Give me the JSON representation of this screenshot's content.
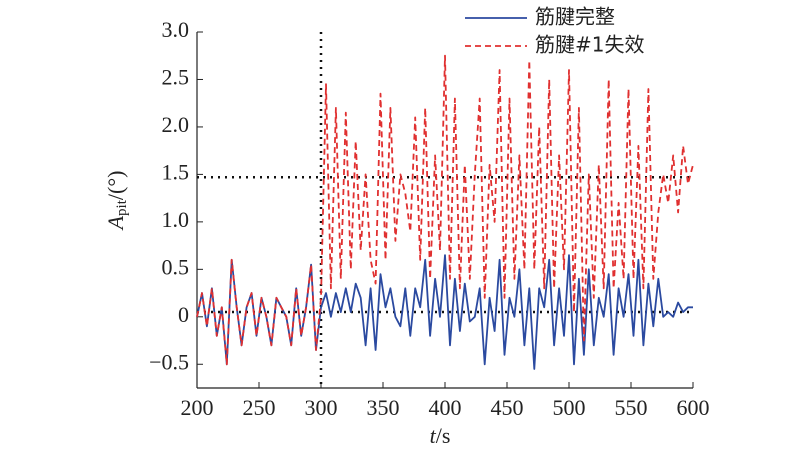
{
  "chart_data": {
    "type": "line",
    "x_label": {
      "symbol": "t",
      "unit": "/s"
    },
    "y_label": {
      "symbol": "A",
      "subscript": "pit",
      "unit": "/(°)"
    },
    "xlim": [
      200,
      600
    ],
    "xticks": [
      200,
      250,
      300,
      350,
      400,
      450,
      500,
      550,
      600
    ],
    "ylim": [
      -0.75,
      3.0
    ],
    "yticks": [
      {
        "value": -0.5,
        "label": "−0.5"
      },
      0,
      {
        "value": 0.5,
        "label": "0.5"
      },
      {
        "value": 1,
        "label": "1.0"
      },
      {
        "value": 1.5,
        "label": "1.5"
      },
      {
        "value": 2,
        "label": "2.0"
      },
      {
        "value": 2.5,
        "label": "2.5"
      },
      {
        "value": 3,
        "label": "3.0"
      }
    ],
    "reference_lines": {
      "x": [
        300
      ],
      "y": [
        1.47,
        0.05
      ]
    },
    "legend": "upper right",
    "x": [
      200,
      204,
      208,
      212,
      216,
      220,
      224,
      228,
      232,
      236,
      240,
      244,
      248,
      252,
      256,
      260,
      264,
      268,
      272,
      276,
      280,
      284,
      288,
      292,
      296,
      300,
      304,
      308,
      312,
      316,
      320,
      324,
      328,
      332,
      336,
      340,
      344,
      348,
      352,
      356,
      360,
      364,
      368,
      372,
      376,
      380,
      384,
      388,
      392,
      396,
      400,
      404,
      408,
      412,
      416,
      420,
      424,
      428,
      432,
      436,
      440,
      444,
      448,
      452,
      456,
      460,
      464,
      468,
      472,
      476,
      480,
      484,
      488,
      492,
      496,
      500,
      504,
      508,
      512,
      516,
      520,
      524,
      528,
      532,
      536,
      540,
      544,
      548,
      552,
      556,
      560,
      564,
      568,
      572,
      576,
      580,
      584,
      588,
      592,
      596,
      600
    ],
    "series": [
      {
        "name": "筋腱完整",
        "color": "#2b4aa0",
        "dash": false,
        "values": [
          0.0,
          0.25,
          -0.1,
          0.3,
          -0.2,
          0.1,
          -0.5,
          0.6,
          0.1,
          -0.3,
          0.1,
          0.25,
          -0.2,
          0.2,
          0.0,
          -0.3,
          0.2,
          0.1,
          0.0,
          -0.3,
          0.3,
          -0.2,
          0.1,
          0.55,
          -0.35,
          0.1,
          0.25,
          0.0,
          0.25,
          0.05,
          0.3,
          0.05,
          0.35,
          0.2,
          -0.3,
          0.3,
          -0.35,
          0.45,
          0.1,
          0.3,
          0.0,
          -0.1,
          0.3,
          -0.2,
          0.3,
          0.1,
          0.6,
          -0.2,
          0.4,
          0.0,
          0.65,
          -0.3,
          0.4,
          -0.15,
          0.35,
          -0.05,
          0.0,
          0.3,
          -0.5,
          0.2,
          -0.15,
          0.6,
          -0.4,
          0.2,
          0.0,
          0.5,
          -0.3,
          0.3,
          -0.55,
          0.3,
          0.1,
          0.6,
          -0.3,
          0.3,
          -0.2,
          0.65,
          -0.5,
          0.4,
          -0.4,
          0.5,
          -0.3,
          0.2,
          0.0,
          0.45,
          -0.4,
          0.3,
          0.0,
          0.45,
          -0.2,
          0.6,
          -0.3,
          0.35,
          -0.1,
          0.4,
          0.0,
          0.05,
          0.0,
          0.15,
          0.05,
          0.1,
          0.1
        ]
      },
      {
        "name": "筋腱#1失效",
        "color": "#e03030",
        "dash": true,
        "values": [
          0.0,
          0.25,
          -0.1,
          0.3,
          -0.2,
          0.1,
          -0.5,
          0.6,
          0.1,
          -0.3,
          0.1,
          0.25,
          -0.2,
          0.2,
          0.0,
          -0.3,
          0.2,
          0.1,
          0.0,
          -0.3,
          0.3,
          -0.2,
          0.1,
          0.55,
          -0.35,
          0.2,
          2.45,
          0.3,
          2.2,
          0.4,
          2.15,
          0.5,
          1.85,
          0.7,
          1.5,
          0.6,
          0.35,
          2.35,
          0.6,
          2.2,
          0.8,
          1.5,
          1.3,
          0.9,
          2.1,
          0.6,
          2.2,
          0.4,
          1.7,
          0.7,
          2.75,
          0.4,
          2.3,
          0.3,
          1.6,
          0.4,
          1.5,
          2.3,
          0.2,
          1.6,
          1.0,
          2.6,
          0.2,
          2.3,
          0.4,
          1.7,
          0.5,
          2.7,
          0.5,
          2.0,
          0.3,
          2.5,
          0.3,
          1.7,
          0.5,
          2.6,
          0.05,
          2.2,
          -0.25,
          1.5,
          0.2,
          1.6,
          0.3,
          2.5,
          0.3,
          1.2,
          0.4,
          2.4,
          0.4,
          1.8,
          0.3,
          2.4,
          0.4,
          1.1,
          1.5,
          1.2,
          1.7,
          1.1,
          1.8,
          1.4,
          1.6
        ]
      }
    ]
  }
}
